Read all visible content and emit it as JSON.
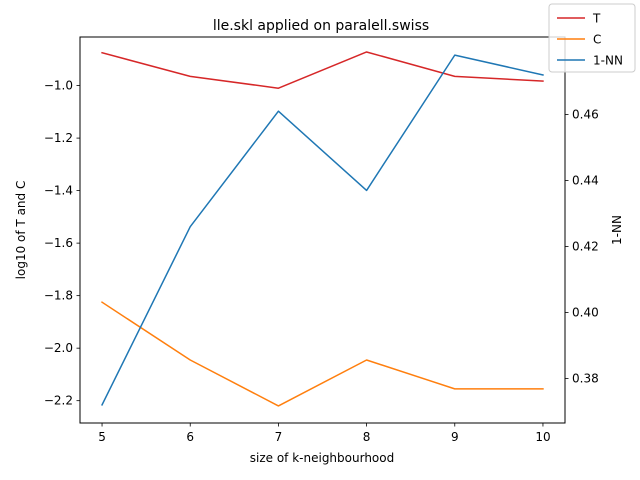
{
  "chart_data": {
    "type": "line",
    "title": "lle.skl applied on paralell.swiss",
    "xlabel": "size of k-neighbourhood",
    "ylabel_left": "log10 of T and C",
    "ylabel_right": "1-NN",
    "x": [
      5,
      6,
      7,
      8,
      9,
      10
    ],
    "xlim": [
      4.75,
      10.25
    ],
    "ylim_left": [
      -2.285,
      -0.815
    ],
    "ylim_right": [
      0.3665,
      0.4835
    ],
    "xticks": [
      "5",
      "6",
      "7",
      "8",
      "9",
      "10"
    ],
    "yticks_left": [
      "−2.2",
      "−2.0",
      "−1.8",
      "−1.6",
      "−1.4",
      "−1.2",
      "−1.0"
    ],
    "yticks_right": [
      "0.38",
      "0.40",
      "0.42",
      "0.44",
      "0.46"
    ],
    "series": [
      {
        "name": "T",
        "axis": "left",
        "color": "#d62728",
        "values": [
          -0.875,
          -0.965,
          -1.01,
          -0.872,
          -0.965,
          -0.983
        ]
      },
      {
        "name": "C",
        "axis": "left",
        "color": "#ff7f0e",
        "values": [
          -1.825,
          -2.045,
          -2.22,
          -2.045,
          -2.155,
          -2.155
        ]
      },
      {
        "name": "1-NN",
        "axis": "right",
        "color": "#1f77b4",
        "values": [
          0.372,
          0.426,
          0.461,
          0.437,
          0.478,
          0.472
        ]
      }
    ],
    "legend_position": "top-right",
    "grid": false
  }
}
